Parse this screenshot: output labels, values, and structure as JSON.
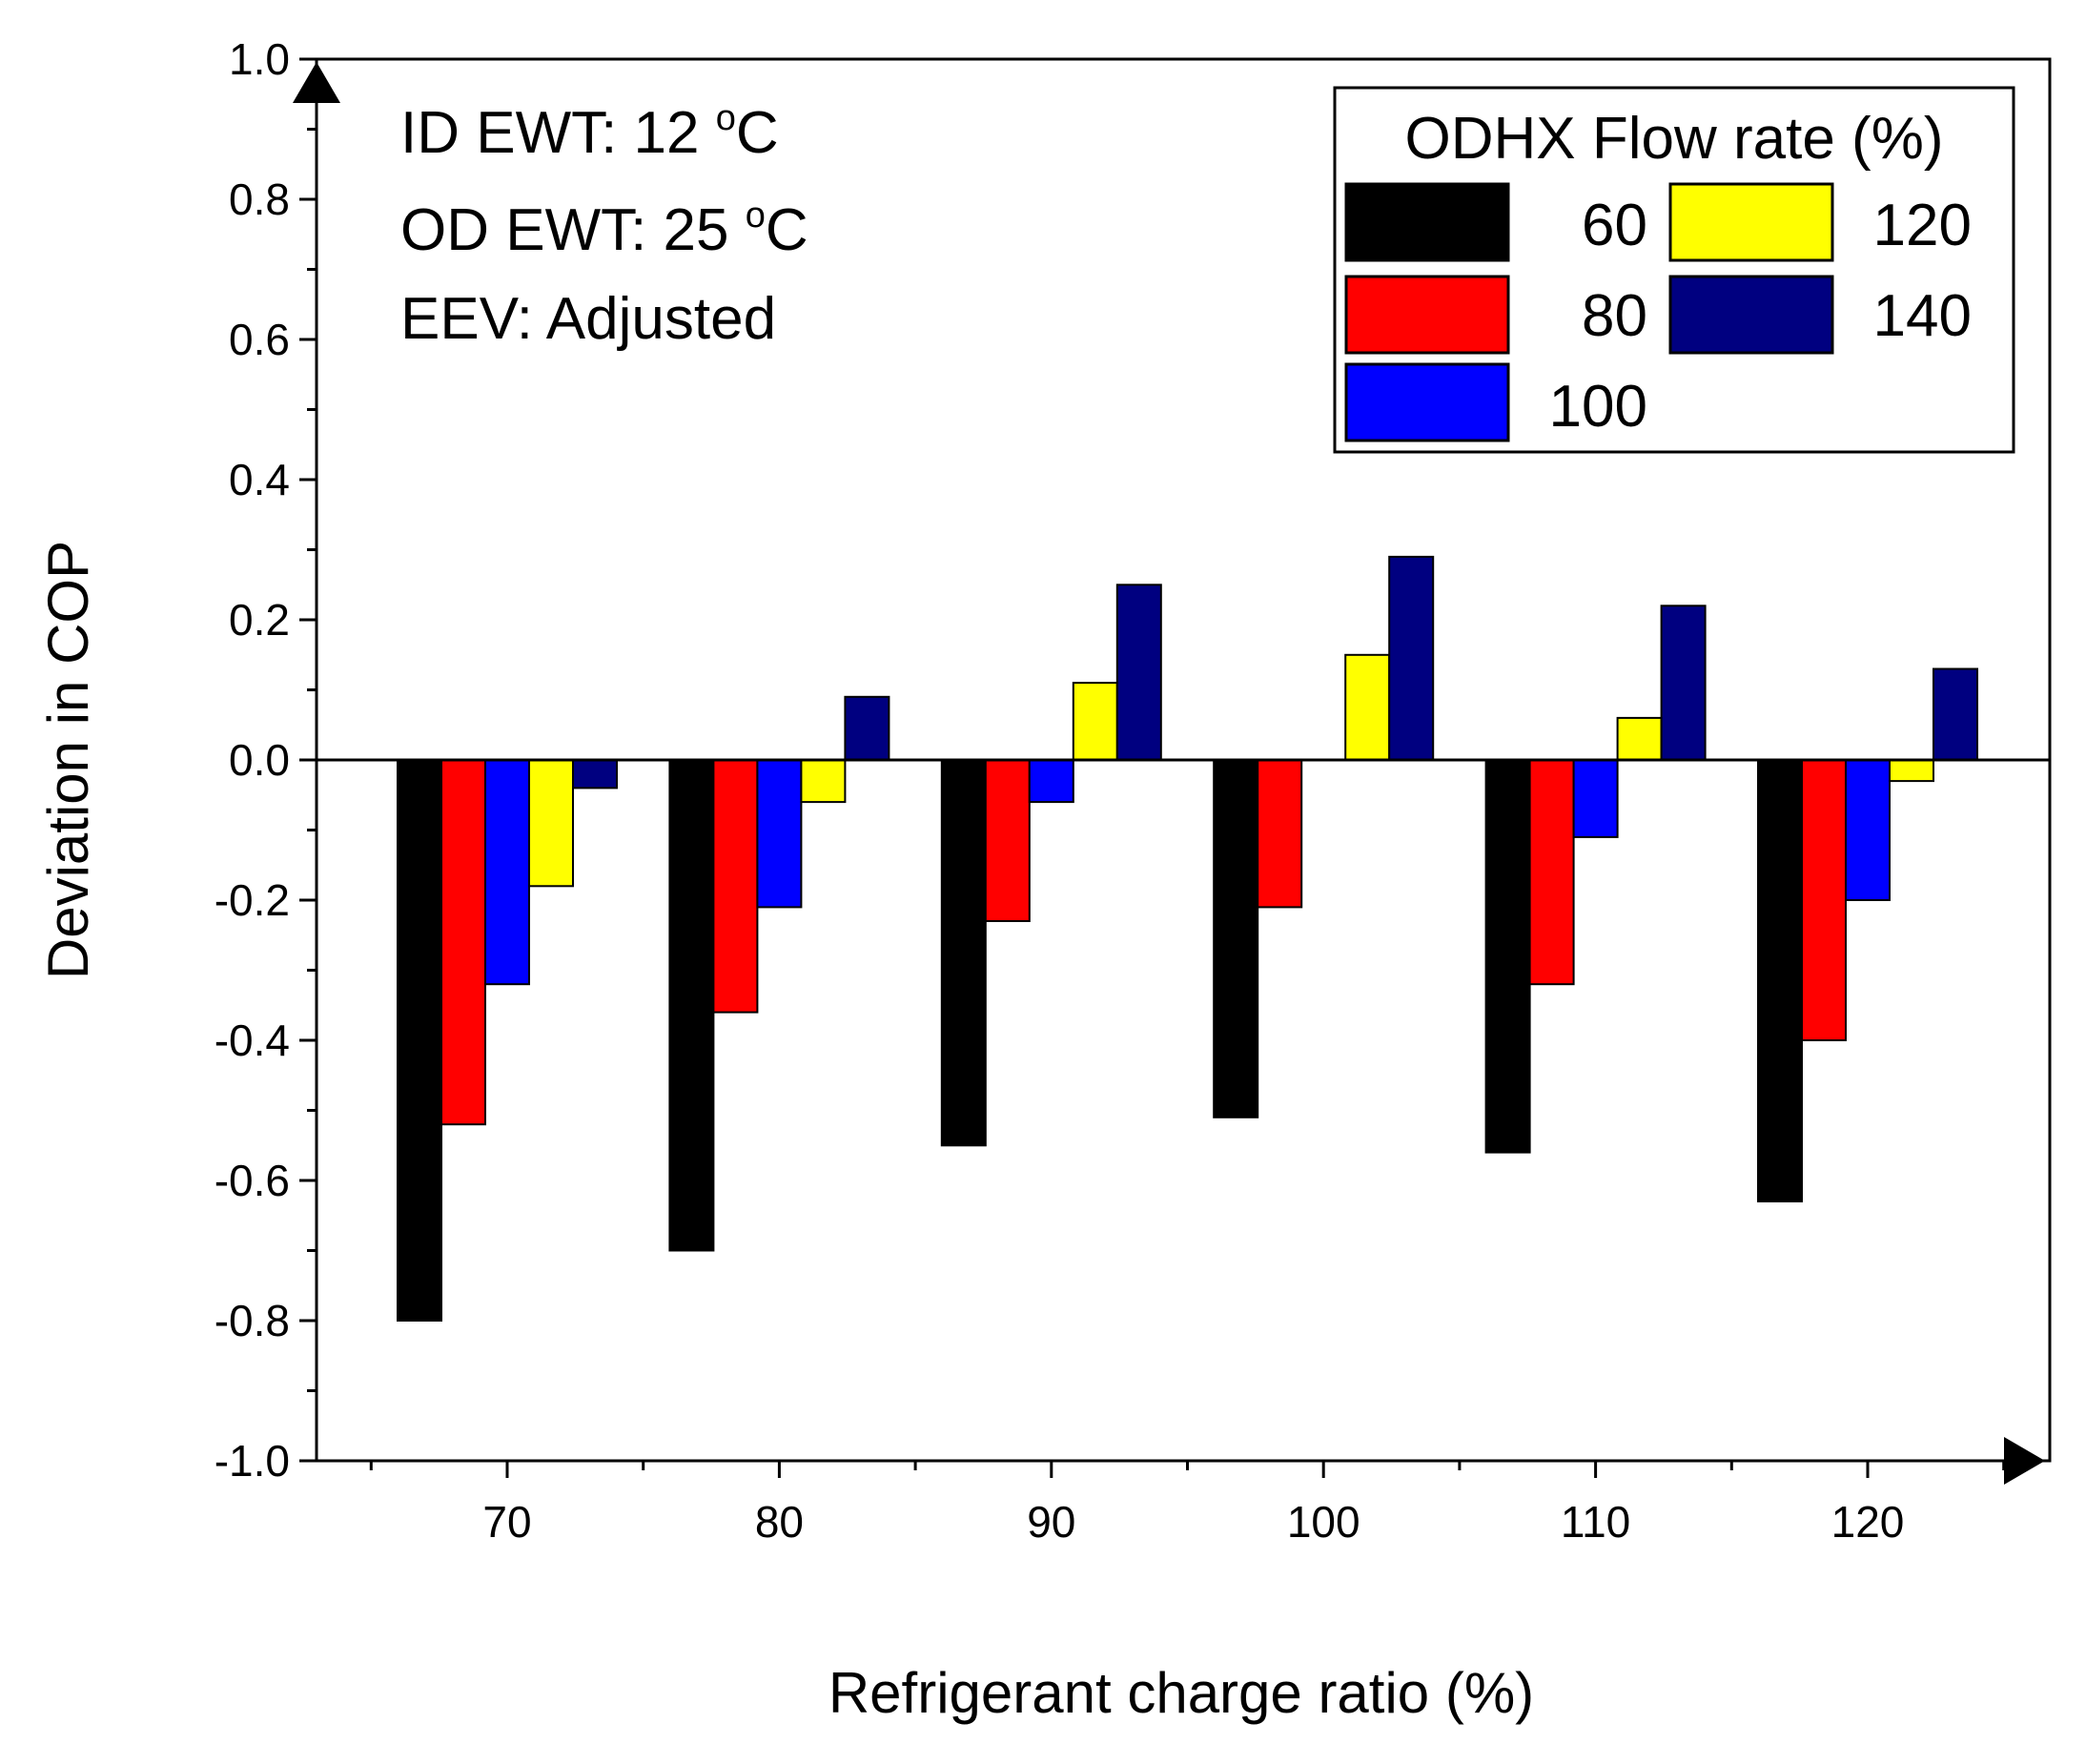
{
  "chart_data": {
    "type": "bar",
    "title": "",
    "xlabel": "Refrigerant charge ratio (%)",
    "ylabel": "Deviation in COP",
    "ylim": [
      -1.0,
      1.0
    ],
    "ytick_values": [
      -1.0,
      -0.8,
      -0.6,
      -0.4,
      -0.2,
      0.0,
      0.2,
      0.4,
      0.6,
      0.8,
      1.0
    ],
    "ytick_labels": [
      "-1.0",
      "-0.8",
      "-0.6",
      "-0.4",
      "-0.2",
      "0.0",
      "0.2",
      "0.4",
      "0.6",
      "0.8",
      "1.0"
    ],
    "categories": [
      "70",
      "80",
      "90",
      "100",
      "110",
      "120"
    ],
    "legend": {
      "title": "ODHX Flow rate (%)",
      "placement": "top-right"
    },
    "series": [
      {
        "name": "60",
        "color": "#000000",
        "values": [
          -0.8,
          -0.7,
          -0.55,
          -0.51,
          -0.56,
          -0.63
        ]
      },
      {
        "name": "80",
        "color": "#ff0000",
        "values": [
          -0.52,
          -0.36,
          -0.23,
          -0.21,
          -0.32,
          -0.4
        ]
      },
      {
        "name": "100",
        "color": "#0000ff",
        "values": [
          -0.32,
          -0.21,
          -0.06,
          0.0,
          -0.11,
          -0.2
        ]
      },
      {
        "name": "120",
        "color": "#ffff00",
        "values": [
          -0.18,
          -0.06,
          0.11,
          0.15,
          0.06,
          -0.03
        ]
      },
      {
        "name": "140",
        "color": "#000080",
        "values": [
          -0.04,
          0.09,
          0.25,
          0.29,
          0.22,
          0.13
        ]
      }
    ],
    "annotations": [
      {
        "label": "ID EWT",
        "value": "12",
        "unit_sup": "o",
        "unit": "C"
      },
      {
        "label": "OD EWT",
        "value": "25",
        "unit_sup": "o",
        "unit": "C"
      },
      {
        "label": "EEV",
        "value": "Adjusted"
      }
    ],
    "zero_line": true,
    "grid": false
  }
}
